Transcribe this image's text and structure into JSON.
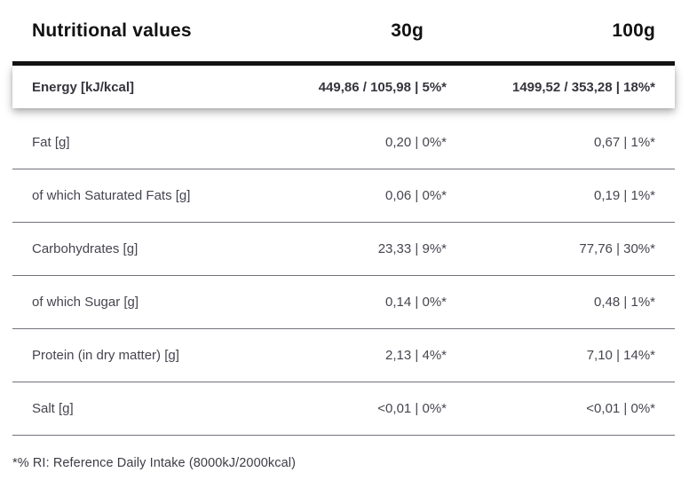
{
  "table": {
    "header": {
      "label": "Nutritional values",
      "col_30g": "30g",
      "col_100g": "100g"
    },
    "energy_row": {
      "label": "Energy [kJ/kcal]",
      "v30": "449,86 / 105,98 | 5%*",
      "v100": "1499,52 / 353,28 | 18%*"
    },
    "rows": [
      {
        "label": "Fat [g]",
        "v30": "0,20 | 0%*",
        "v100": "0,67 | 1%*"
      },
      {
        "label": "of which Saturated Fats [g]",
        "v30": "0,06 | 0%*",
        "v100": "0,19 | 1%*"
      },
      {
        "label": "Carbohydrates [g]",
        "v30": "23,33 | 9%*",
        "v100": "77,76 | 30%*"
      },
      {
        "label": "of which Sugar [g]",
        "v30": "0,14 | 0%*",
        "v100": "0,48 | 1%*"
      },
      {
        "label": "Protein (in dry matter) [g]",
        "v30": "2,13 | 4%*",
        "v100": "7,10 | 14%*"
      },
      {
        "label": "Salt [g]",
        "v30": "<0,01 | 0%*",
        "v100": "<0,01 | 0%*"
      }
    ],
    "footnote": "*% RI: Reference Daily Intake (8000kJ/2000kcal)"
  }
}
